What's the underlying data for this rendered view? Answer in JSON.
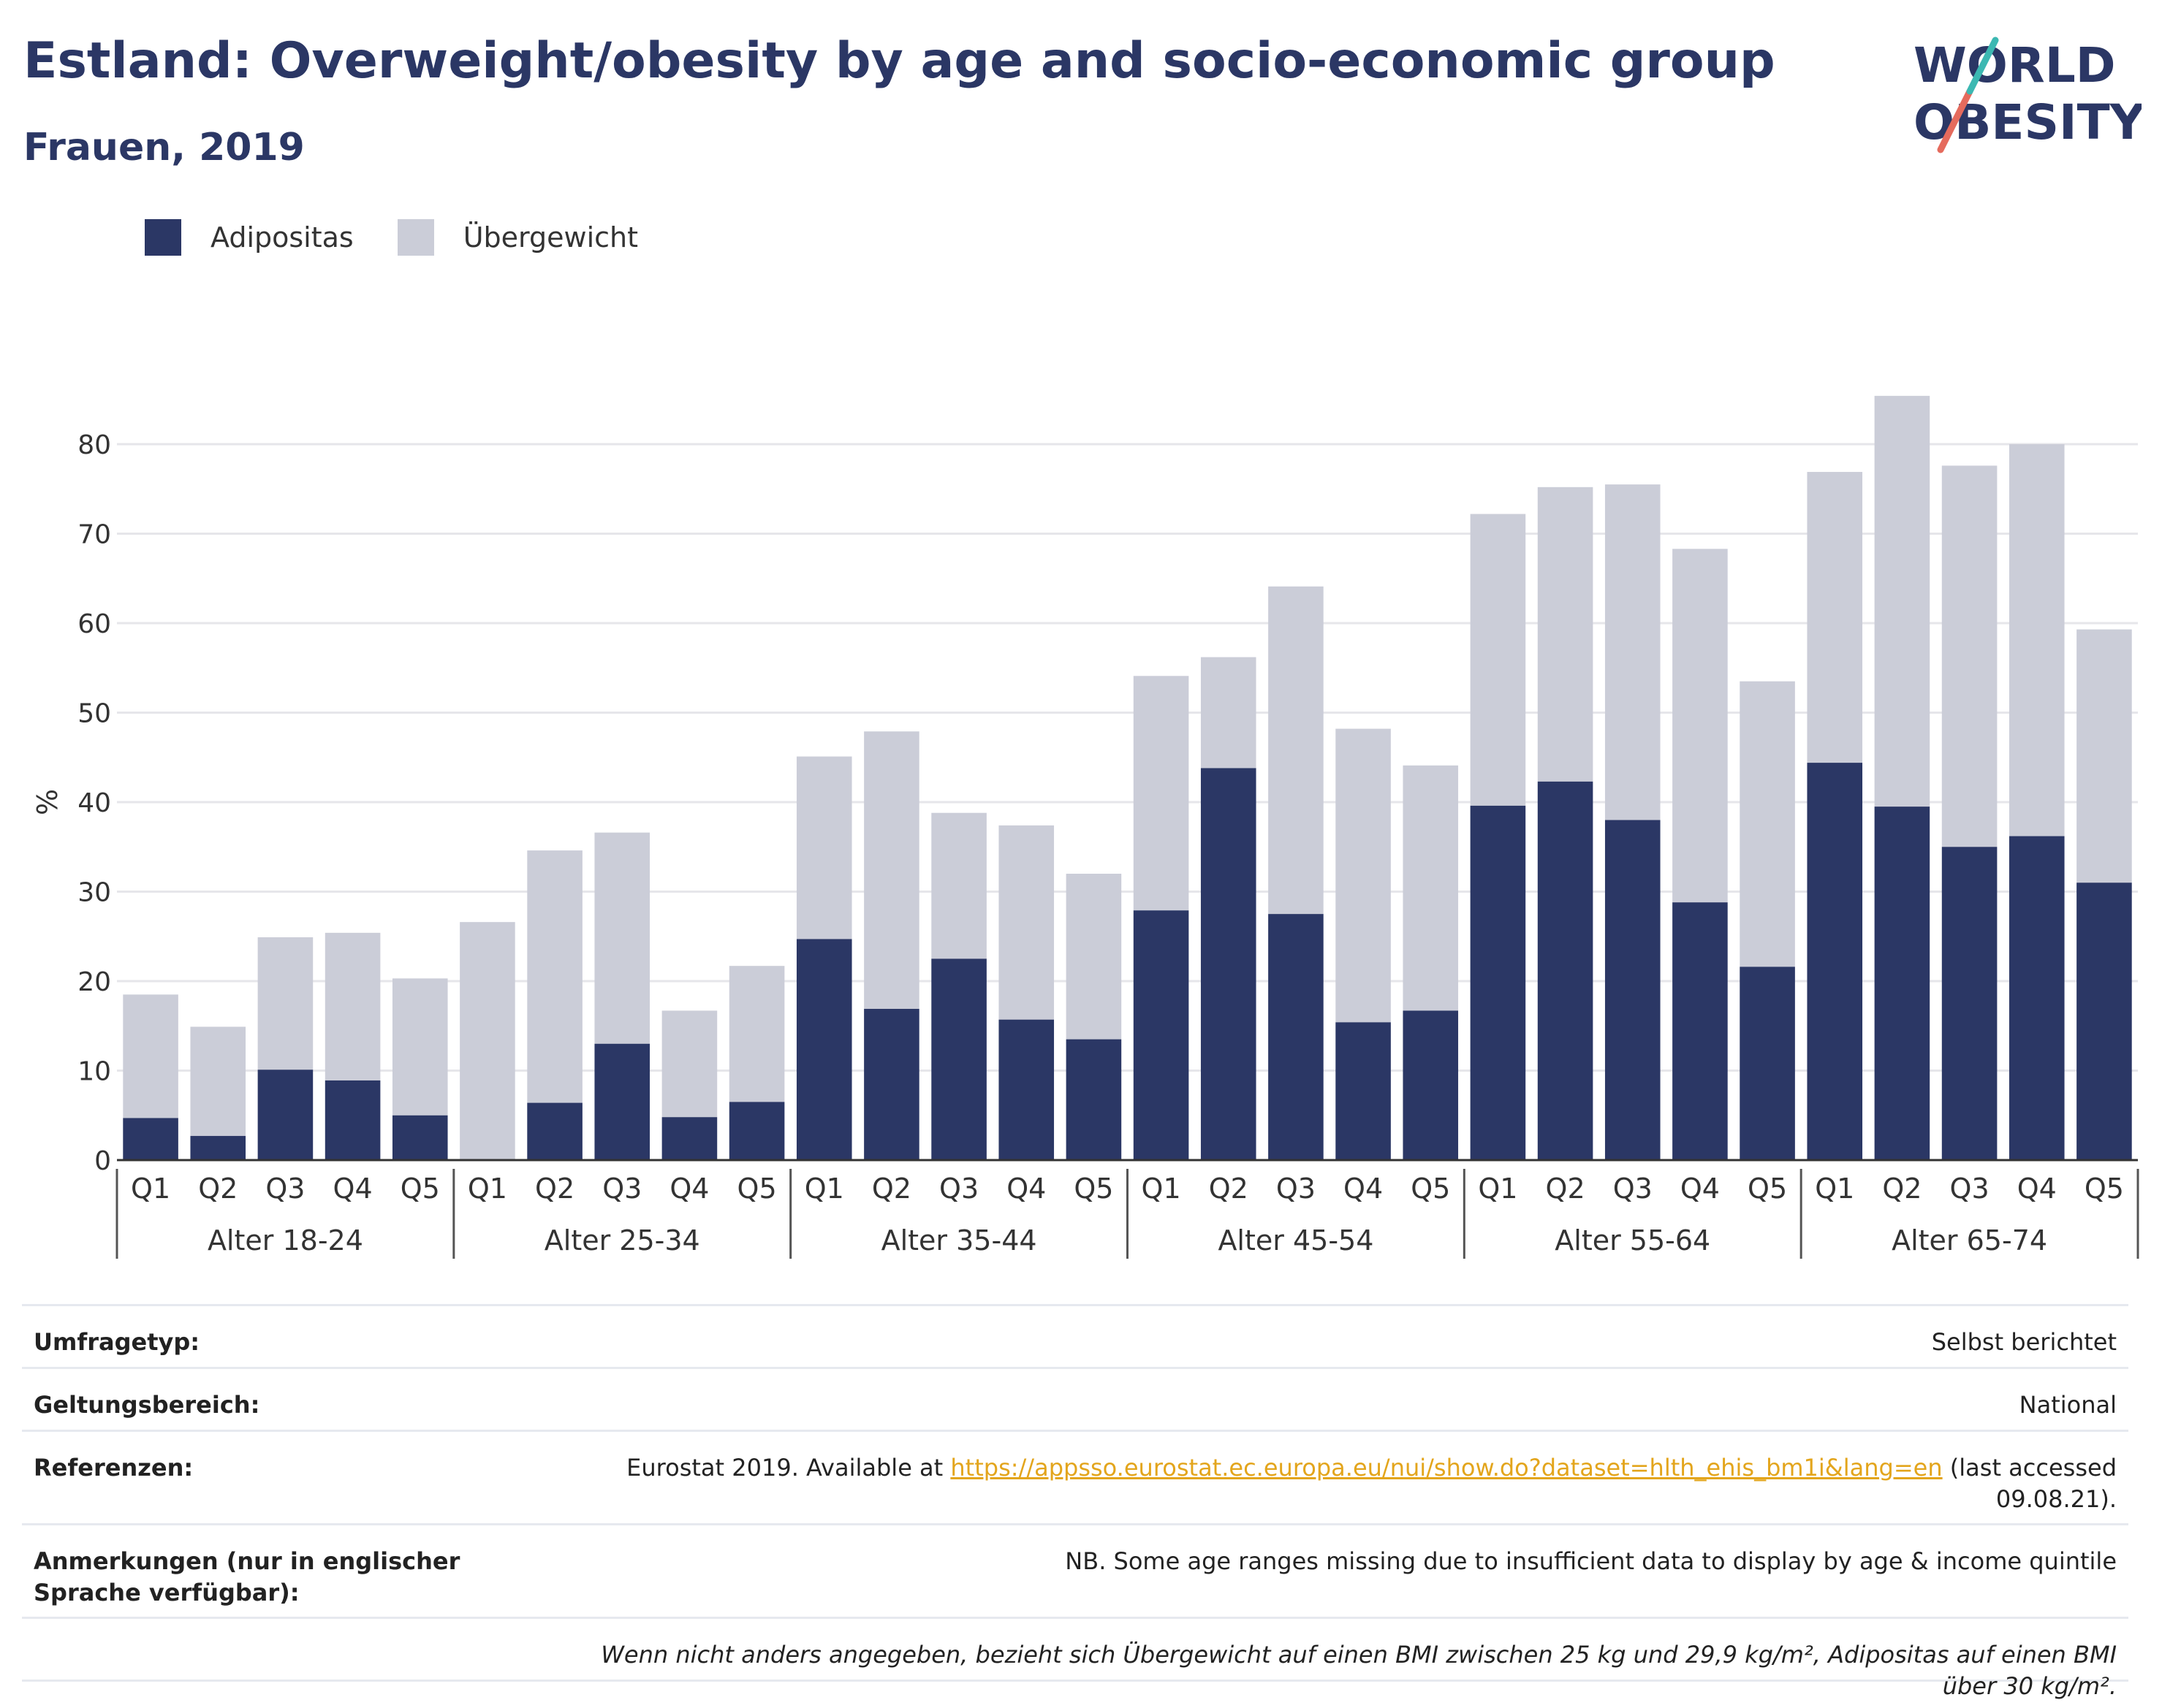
{
  "title": "Estland: Overweight/obesity by age and socio-economic group",
  "subtitle": "Frauen, 2019",
  "logo": {
    "line1": "WORLD",
    "line2": "OBESITY"
  },
  "colors": {
    "obesity": "#2b3765",
    "overweight": "#cbcdd8",
    "title": "#2b3765",
    "link": "#e3a51c"
  },
  "chart_data": {
    "type": "bar",
    "stacked": true,
    "ylabel": "%",
    "ylim": [
      0,
      90
    ],
    "yticks": [
      0,
      10,
      20,
      30,
      40,
      50,
      60,
      70,
      80
    ],
    "grid": true,
    "legend_position": "top-left",
    "groups": [
      {
        "label": "Alter 18-24",
        "categories": [
          "Q1",
          "Q2",
          "Q3",
          "Q4",
          "Q5"
        ]
      },
      {
        "label": "Alter 25-34",
        "categories": [
          "Q1",
          "Q2",
          "Q3",
          "Q4",
          "Q5"
        ]
      },
      {
        "label": "Alter 35-44",
        "categories": [
          "Q1",
          "Q2",
          "Q3",
          "Q4",
          "Q5"
        ]
      },
      {
        "label": "Alter 45-54",
        "categories": [
          "Q1",
          "Q2",
          "Q3",
          "Q4",
          "Q5"
        ]
      },
      {
        "label": "Alter 55-64",
        "categories": [
          "Q1",
          "Q2",
          "Q3",
          "Q4",
          "Q5"
        ]
      },
      {
        "label": "Alter 65-74",
        "categories": [
          "Q1",
          "Q2",
          "Q3",
          "Q4",
          "Q5"
        ]
      }
    ],
    "series": [
      {
        "name": "Adipositas",
        "color": "#2b3765",
        "values": [
          4.7,
          2.7,
          10.1,
          8.9,
          5.0,
          0,
          6.4,
          13.0,
          4.8,
          6.5,
          24.7,
          16.9,
          22.5,
          15.7,
          13.5,
          27.9,
          43.8,
          27.5,
          15.4,
          16.7,
          39.6,
          42.3,
          38.0,
          28.8,
          21.6,
          44.4,
          39.5,
          35.0,
          36.2,
          31.0
        ]
      },
      {
        "name": "Übergewicht",
        "color": "#cbcdd8",
        "values": [
          13.8,
          12.2,
          14.8,
          16.5,
          15.3,
          26.6,
          28.2,
          23.6,
          11.9,
          15.2,
          20.4,
          31.0,
          16.3,
          21.7,
          18.5,
          26.2,
          12.4,
          36.6,
          32.8,
          27.4,
          32.6,
          32.9,
          37.5,
          39.5,
          31.9,
          32.5,
          45.9,
          42.6,
          43.8,
          28.3
        ]
      }
    ]
  },
  "table": {
    "rows": [
      {
        "key": "Umfragetyp:",
        "value": "Selbst berichtet"
      },
      {
        "key": "Geltungsbereich:",
        "value": "National"
      },
      {
        "key": "Referenzen:",
        "value_prefix": "Eurostat 2019. Available at ",
        "link": "https://appsso.eurostat.ec.europa.eu/nui/show.do?dataset=hlth_ehis_bm1i&lang=en",
        "value_suffix": " (last accessed 09.08.21)."
      },
      {
        "key": "Anmerkungen (nur in englischer Sprache verfügbar):",
        "value": "NB. Some age ranges missing due to insufficient data to display by age & income quintile"
      }
    ],
    "footnote": "Wenn nicht anders angegeben, bezieht sich Übergewicht auf einen BMI zwischen 25 kg und 29,9 kg/m², Adipositas auf einen BMI über 30 kg/m²."
  }
}
